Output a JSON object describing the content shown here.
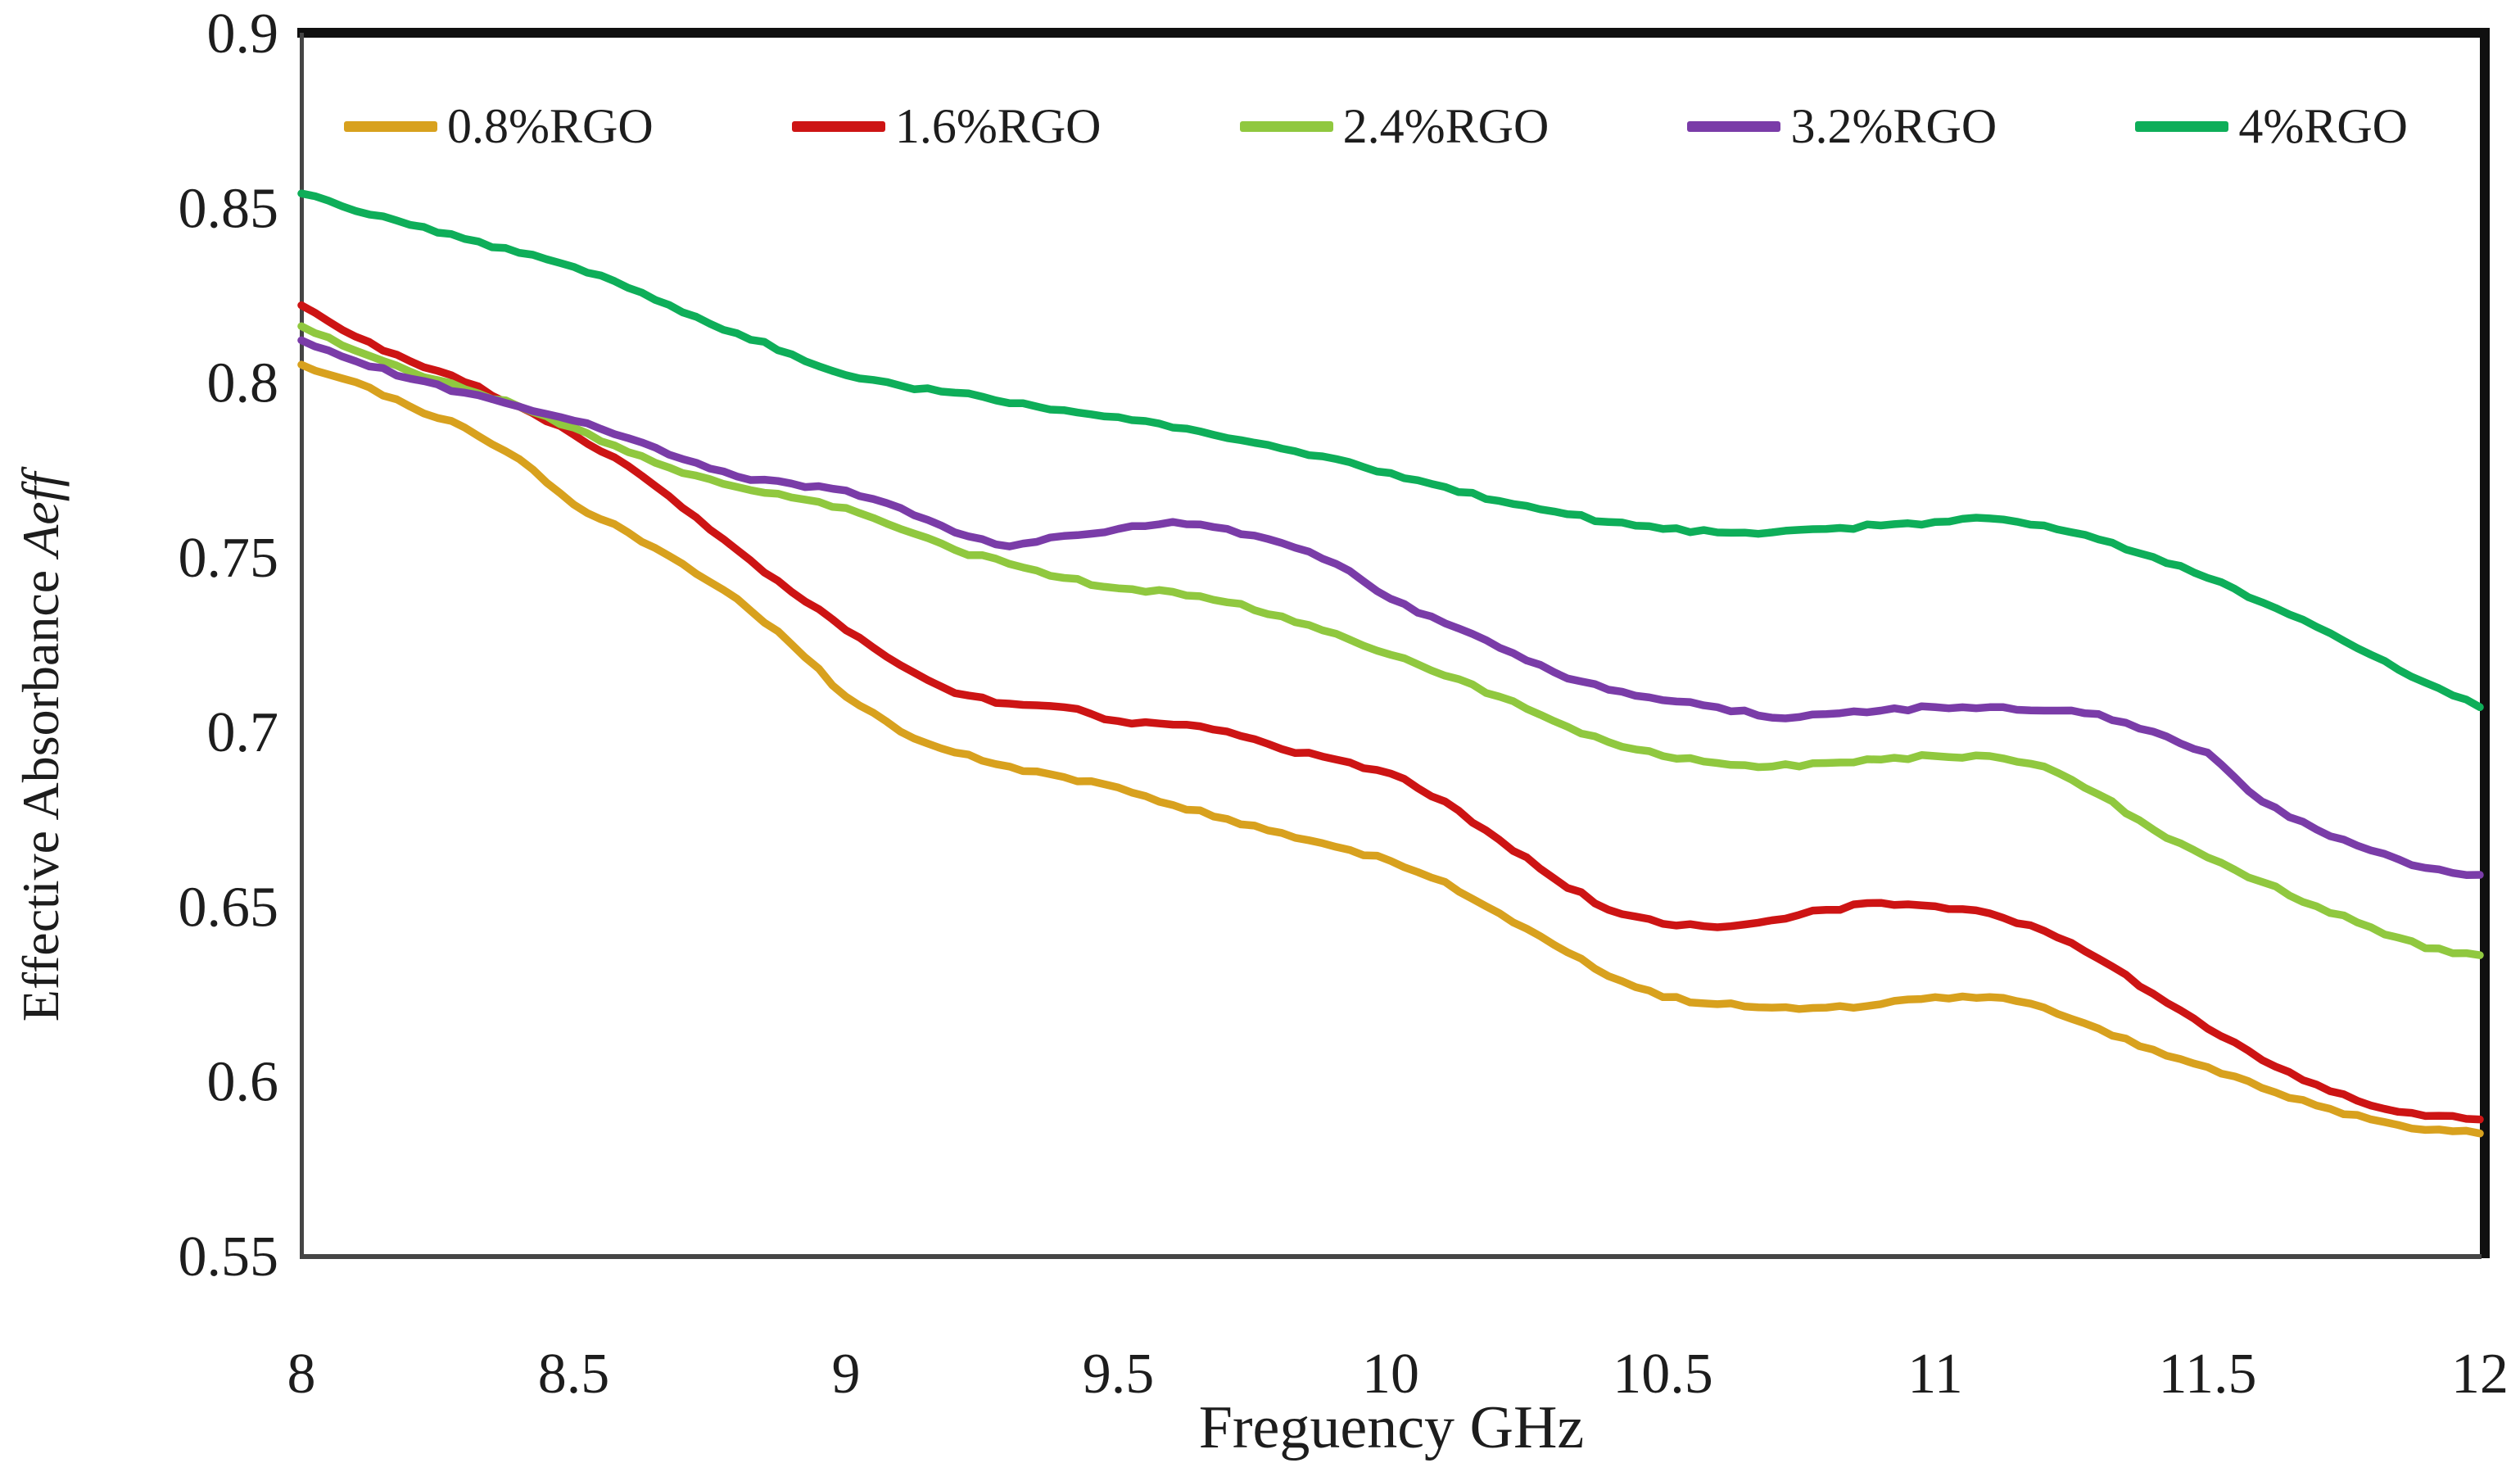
{
  "figure": {
    "background": "#ffffff",
    "text_color": "#1d1d1d",
    "y_axis_title_regular": "Effective Absorbance ",
    "y_axis_title_italic": "Aeff"
  },
  "chart_data": {
    "type": "line",
    "title": "",
    "xlabel": "Freguency GHz",
    "ylabel": "Effective Absorbance Aeff",
    "xlim": [
      8,
      12
    ],
    "ylim": [
      0.55,
      0.9
    ],
    "grid": false,
    "legend_position": "top-inside",
    "x_ticks": [
      "8",
      "8.5",
      "9",
      "9.5",
      "10",
      "10.5",
      "11",
      "11.5",
      "12"
    ],
    "y_ticks": [
      "0.9",
      "0.85",
      "0.8",
      "0.75",
      "0.7",
      "0.65",
      "0.6",
      "0.55"
    ],
    "x_start": 8,
    "x_step": 0.1,
    "series": [
      {
        "name": "0.8%RGO",
        "color": "#D8A11E",
        "values": [
          0.805,
          0.8,
          0.793,
          0.787,
          0.778,
          0.765,
          0.757,
          0.748,
          0.738,
          0.725,
          0.71,
          0.7,
          0.694,
          0.69,
          0.687,
          0.684,
          0.679,
          0.675,
          0.671,
          0.667,
          0.663,
          0.657,
          0.648,
          0.639,
          0.63,
          0.624,
          0.622,
          0.621,
          0.621,
          0.622,
          0.624,
          0.624,
          0.621,
          0.615,
          0.609,
          0.604,
          0.598,
          0.593,
          0.589,
          0.586,
          0.585
        ]
      },
      {
        "name": "1.6%RGO",
        "color": "#CD1414",
        "values": [
          0.822,
          0.813,
          0.806,
          0.8,
          0.793,
          0.785,
          0.776,
          0.764,
          0.752,
          0.74,
          0.729,
          0.719,
          0.711,
          0.708,
          0.707,
          0.703,
          0.702,
          0.7,
          0.695,
          0.692,
          0.688,
          0.68,
          0.669,
          0.658,
          0.649,
          0.645,
          0.644,
          0.646,
          0.649,
          0.651,
          0.65,
          0.648,
          0.643,
          0.635,
          0.625,
          0.615,
          0.606,
          0.599,
          0.593,
          0.59,
          0.589
        ]
      },
      {
        "name": "2.4%RGO",
        "color": "#90C83F",
        "values": [
          0.816,
          0.809,
          0.803,
          0.798,
          0.793,
          0.787,
          0.78,
          0.774,
          0.77,
          0.767,
          0.764,
          0.758,
          0.752,
          0.748,
          0.744,
          0.741,
          0.74,
          0.737,
          0.733,
          0.728,
          0.722,
          0.716,
          0.71,
          0.703,
          0.697,
          0.693,
          0.691,
          0.69,
          0.691,
          0.692,
          0.693,
          0.693,
          0.69,
          0.682,
          0.672,
          0.664,
          0.657,
          0.65,
          0.644,
          0.638,
          0.636
        ]
      },
      {
        "name": "3.2%RGO",
        "color": "#7A3CA8",
        "values": [
          0.812,
          0.806,
          0.801,
          0.797,
          0.793,
          0.789,
          0.784,
          0.778,
          0.773,
          0.771,
          0.769,
          0.764,
          0.757,
          0.753,
          0.756,
          0.758,
          0.76,
          0.758,
          0.754,
          0.748,
          0.738,
          0.731,
          0.724,
          0.717,
          0.712,
          0.709,
          0.707,
          0.704,
          0.705,
          0.706,
          0.707,
          0.707,
          0.706,
          0.705,
          0.7,
          0.694,
          0.68,
          0.672,
          0.666,
          0.661,
          0.659
        ]
      },
      {
        "name": "4%RGO",
        "color": "#0EAE59",
        "values": [
          0.854,
          0.849,
          0.845,
          0.841,
          0.837,
          0.833,
          0.827,
          0.82,
          0.814,
          0.808,
          0.802,
          0.799,
          0.797,
          0.794,
          0.792,
          0.79,
          0.787,
          0.784,
          0.781,
          0.778,
          0.774,
          0.77,
          0.766,
          0.763,
          0.76,
          0.758,
          0.757,
          0.757,
          0.758,
          0.759,
          0.76,
          0.761,
          0.759,
          0.755,
          0.75,
          0.744,
          0.737,
          0.73,
          0.722,
          0.714,
          0.707
        ]
      }
    ]
  }
}
